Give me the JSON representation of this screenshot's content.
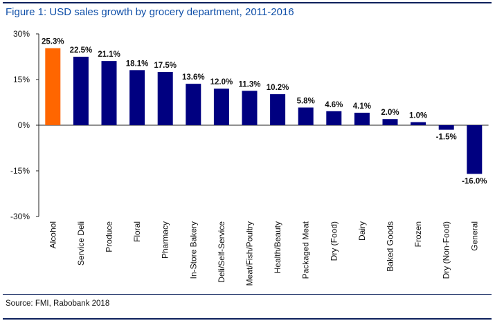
{
  "title": "Figure 1: USD sales growth by grocery department, 2011-2016",
  "source": "Source: FMI, Rabobank 2018",
  "colors": {
    "highlight": "#ff6600",
    "bar": "#000080",
    "title": "#0f4fa8",
    "rule": "#0b1f5b"
  },
  "chart_data": {
    "type": "bar",
    "title": "Figure 1: USD sales growth by grocery department, 2011-2016",
    "xlabel": "",
    "ylabel": "",
    "ylim": [
      -30,
      30
    ],
    "yticks": [
      30,
      15,
      0,
      -15,
      -30
    ],
    "ytick_labels": [
      "30%",
      "15%",
      "0%",
      "-15%",
      "-30%"
    ],
    "grid": false,
    "categories": [
      "Alcohol",
      "Service Deli",
      "Produce",
      "Floral",
      "Pharmacy",
      "In-Store Bakery",
      "Deli/Self-Service",
      "Meat/Fish/Poultry",
      "Health/Beauty",
      "Packaged Meat",
      "Dry (Food)",
      "Dairy",
      "Baked Goods",
      "Frozen",
      "Dry (Non-Food)",
      "General"
    ],
    "values": [
      25.3,
      22.5,
      21.1,
      18.1,
      17.5,
      13.6,
      12.0,
      11.3,
      10.2,
      5.8,
      4.6,
      4.1,
      2.0,
      1.0,
      -1.5,
      -16.0
    ],
    "value_labels": [
      "25.3%",
      "22.5%",
      "21.1%",
      "18.1%",
      "17.5%",
      "13.6%",
      "12.0%",
      "11.3%",
      "10.2%",
      "5.8%",
      "4.6%",
      "4.1%",
      "2.0%",
      "1.0%",
      "-1.5%",
      "-16.0%"
    ],
    "highlight_index": 0
  }
}
